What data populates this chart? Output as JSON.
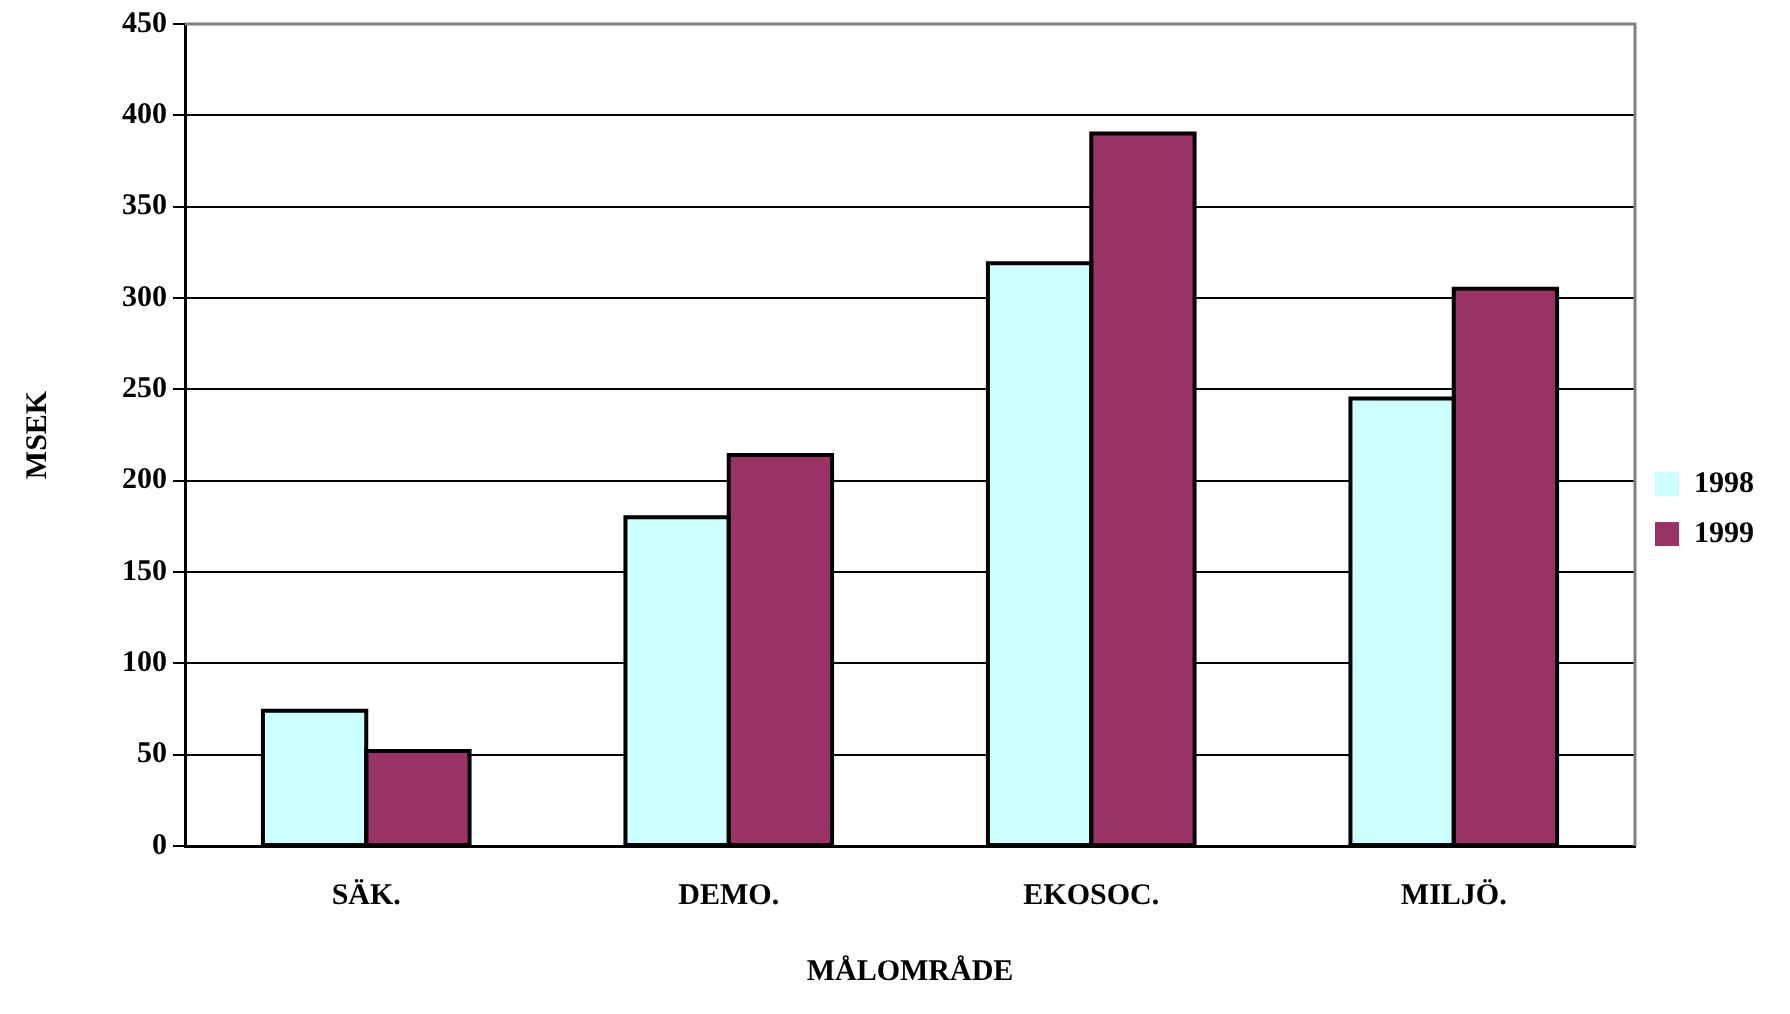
{
  "chart_data": {
    "type": "bar",
    "xlabel": "MÅLOMRÅDE",
    "ylabel": "MSEK",
    "categories": [
      "SÄK.",
      "DEMO.",
      "EKOSOC.",
      "MILJÖ."
    ],
    "series": [
      {
        "name": "1998",
        "color": "#ccffff",
        "values": [
          74,
          180,
          319,
          245
        ]
      },
      {
        "name": "1999",
        "color": "#993366",
        "values": [
          52,
          214,
          390,
          305
        ]
      }
    ],
    "ylim": [
      0,
      450
    ],
    "yticks": [
      0,
      50,
      100,
      150,
      200,
      250,
      300,
      350,
      400,
      450
    ],
    "grid": "y",
    "legend": "right"
  }
}
